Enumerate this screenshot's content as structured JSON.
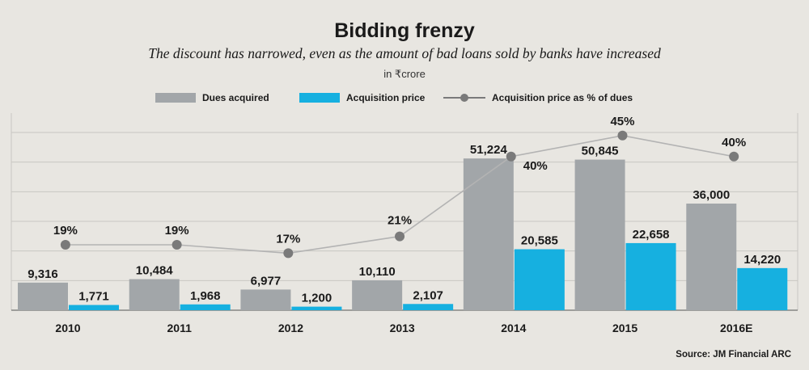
{
  "chart_data": {
    "type": "bar",
    "title": "Bidding frenzy",
    "subtitle": "The discount has narrowed, even as the amount of bad loans sold by banks have increased",
    "unit": "in ₹crore",
    "categories": [
      "2010",
      "2011",
      "2012",
      "2013",
      "2014",
      "2015",
      "2016E"
    ],
    "series": [
      {
        "name": "Dues acquired",
        "kind": "bar",
        "color": "#a2a6a9",
        "values": [
          9316,
          10484,
          6977,
          10110,
          51224,
          50845,
          36000
        ],
        "labels": [
          "9,316",
          "10,484",
          "6,977",
          "10,110",
          "51,224",
          "50,845",
          "36,000"
        ]
      },
      {
        "name": "Acquisition price",
        "kind": "bar",
        "color": "#16b0e0",
        "values": [
          1771,
          1968,
          1200,
          2107,
          20585,
          22658,
          14220
        ],
        "labels": [
          "1,771",
          "1,968",
          "1,200",
          "2,107",
          "20,585",
          "22,658",
          "14,220"
        ]
      },
      {
        "name": "Acquisition price as % of dues",
        "kind": "line",
        "color": "#7a7a7a",
        "values": [
          19,
          19,
          17,
          21,
          40,
          45,
          40
        ],
        "labels": [
          "19%",
          "19%",
          "17%",
          "21%",
          "40%",
          "45%",
          "40%"
        ]
      }
    ],
    "grid": true,
    "source": "Source: JM Financial ARC"
  }
}
